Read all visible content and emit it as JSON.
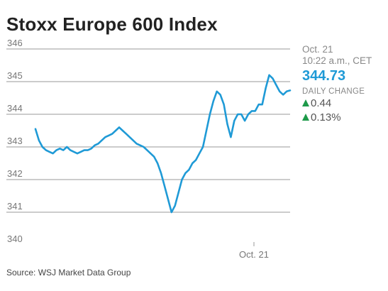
{
  "header": {
    "title": "Stoxx Europe 600 Index"
  },
  "info": {
    "date": "Oct. 21",
    "time": "10:22 a.m., CET",
    "price": "344.73",
    "daily_change_label": "DAILY CHANGE",
    "change_points": "0.44",
    "change_percent": "0.13%"
  },
  "footer": {
    "source": "Source: WSJ Market Data Group"
  },
  "colors": {
    "line": "#1f9ad6",
    "up": "#1e9a4a",
    "grid": "#9a9a9a"
  },
  "chart_data": {
    "type": "line",
    "title": "Stoxx Europe 600 Index",
    "ylim": [
      340,
      346
    ],
    "yticks": [
      340,
      341,
      342,
      343,
      344,
      345,
      346
    ],
    "ytick_labels": [
      "340",
      "341",
      "342",
      "343",
      "344",
      "345",
      "346"
    ],
    "x_tick_labels": [
      "Oct. 21"
    ],
    "grid": true,
    "series": [
      {
        "values": [
          343.55,
          343.2,
          343.0,
          342.9,
          342.85,
          342.8,
          342.9,
          342.95,
          342.9,
          343.0,
          342.9,
          342.85,
          342.8,
          342.85,
          342.9,
          342.9,
          342.95,
          343.05,
          343.1,
          343.2,
          343.3,
          343.35,
          343.4,
          343.5,
          343.6,
          343.5,
          343.4,
          343.3,
          343.2,
          343.1,
          343.05,
          343.0,
          342.9,
          342.8,
          342.7,
          342.5,
          342.2,
          341.8,
          341.4,
          341.0,
          341.2,
          341.6,
          342.0,
          342.2,
          342.3,
          342.5,
          342.6,
          342.8,
          343.0,
          343.5,
          344.0,
          344.4,
          344.7,
          344.6,
          344.3,
          343.7,
          343.3,
          343.8,
          344.0,
          344.0,
          343.8,
          344.0,
          344.1,
          344.1,
          344.3,
          344.3,
          344.8,
          345.2,
          345.1,
          344.9,
          344.7,
          344.6,
          344.7,
          344.73
        ]
      }
    ]
  }
}
